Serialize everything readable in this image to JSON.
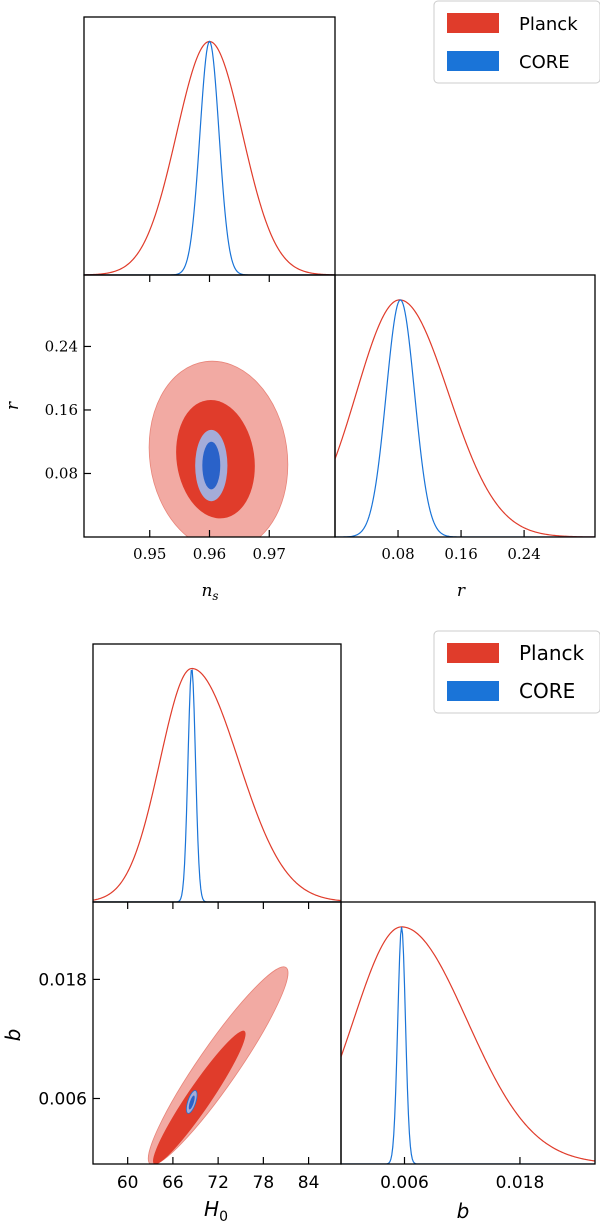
{
  "colors": {
    "planck_line": "#e03c2b",
    "core_line": "#1a74d8",
    "planck_fill_outer": "#f2aaa3",
    "planck_fill_inner": "#e03c2b",
    "core_fill_outer": "#a4acd9",
    "core_fill_inner": "#2a62c9",
    "frame": "#000000"
  },
  "chart_data": [
    {
      "type": "triangle-corner-plot",
      "legend": {
        "position": "top-right",
        "entries": [
          "Planck",
          "CORE"
        ]
      },
      "params": {
        "x": {
          "label": "n_s",
          "ticks": [
            "0.95",
            "0.96",
            "0.97"
          ],
          "tick_values": [
            0.95,
            0.96,
            0.97
          ],
          "range": [
            0.939,
            0.981
          ]
        },
        "y": {
          "label": "r",
          "ticks": [
            "0.24",
            "0.16",
            "0.08"
          ],
          "tick_values": [
            0.24,
            0.16,
            0.08
          ],
          "range": [
            0.0,
            0.33
          ]
        },
        "r_marginal": {
          "label": "r",
          "ticks": [
            "0.08",
            "0.16",
            "0.24"
          ],
          "tick_values": [
            0.08,
            0.16,
            0.24
          ],
          "range": [
            0.0,
            0.33
          ]
        }
      },
      "series": [
        {
          "name": "Planck",
          "n_s": {
            "mean": 0.96,
            "sigma": 0.0055
          },
          "r": {
            "peak": 0.082,
            "sigma_low": 0.055,
            "sigma_high": 0.062
          }
        },
        {
          "name": "CORE",
          "n_s": {
            "mean": 0.96,
            "sigma": 0.0016
          },
          "r": {
            "mean": 0.083,
            "sigma": 0.018
          }
        }
      ],
      "contours_2d": [
        {
          "series": "Planck",
          "level": "95%",
          "center": [
            0.9615,
            0.102
          ],
          "half_width": [
            0.0115,
            0.12
          ]
        },
        {
          "series": "Planck",
          "level": "68%",
          "center": [
            0.961,
            0.098
          ],
          "half_width": [
            0.0065,
            0.075
          ]
        },
        {
          "series": "CORE",
          "level": "95%",
          "center": [
            0.9603,
            0.09
          ],
          "half_width": [
            0.0027,
            0.045
          ]
        },
        {
          "series": "CORE",
          "level": "68%",
          "center": [
            0.9603,
            0.09
          ],
          "half_width": [
            0.0015,
            0.03
          ]
        }
      ]
    },
    {
      "type": "triangle-corner-plot",
      "legend": {
        "position": "top-right",
        "entries": [
          "Planck",
          "CORE"
        ]
      },
      "params": {
        "x": {
          "label": "H_0",
          "ticks": [
            "60",
            "66",
            "72",
            "78",
            "84"
          ],
          "tick_values": [
            60,
            66,
            72,
            78,
            84
          ],
          "range": [
            55.4,
            88.3
          ]
        },
        "y": {
          "label": "b",
          "ticks": [
            "0.018",
            "0.006"
          ],
          "tick_values": [
            0.018,
            0.006
          ],
          "range": [
            -0.0006,
            0.0258
          ]
        },
        "b_marginal": {
          "label": "b",
          "ticks": [
            "0.006",
            "0.018"
          ],
          "tick_values": [
            0.006,
            0.018
          ],
          "range": [
            -0.0006,
            0.0258
          ]
        }
      },
      "series": [
        {
          "name": "Planck",
          "H_0": {
            "peak": 68.5,
            "sigma_low": 4.2,
            "sigma_high": 6.2
          },
          "b": {
            "peak": 0.0057,
            "sigma_low": 0.005,
            "sigma_high": 0.0068
          }
        },
        {
          "name": "CORE",
          "H_0": {
            "mean": 68.5,
            "sigma": 0.5
          },
          "b": {
            "mean": 0.0057,
            "sigma": 0.0004
          }
        }
      ],
      "contours_2d": [
        {
          "series": "Planck",
          "level": "95%",
          "from": [
            63,
            -0.0006
          ],
          "to": [
            81,
            0.0192
          ],
          "half_width": 0.002
        },
        {
          "series": "Planck",
          "level": "68%",
          "from": [
            63.5,
            -0.0006
          ],
          "to": [
            75.5,
            0.0128
          ],
          "half_width": 0.0012
        },
        {
          "series": "CORE",
          "level": "95%",
          "from": [
            68,
            0.0045
          ],
          "to": [
            69,
            0.0068
          ],
          "half_width": 0.0004
        },
        {
          "series": "CORE",
          "level": "68%",
          "from": [
            68.2,
            0.0049
          ],
          "to": [
            68.8,
            0.0063
          ],
          "half_width": 0.0002
        }
      ]
    }
  ]
}
